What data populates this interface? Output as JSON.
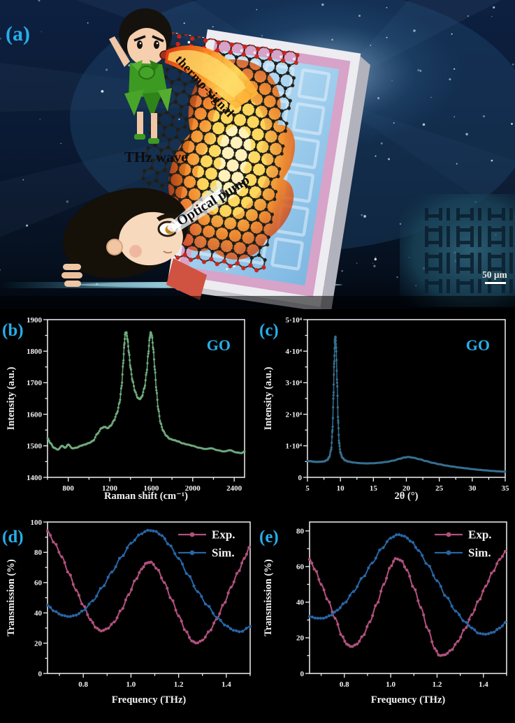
{
  "colors": {
    "background": "#000000",
    "panel_label_cyan": "#27aeea",
    "axis_white": "#f2f2f2",
    "raman_green": "#6faa7d",
    "xrd_blue": "#35708f",
    "exp_pink": "#b0517c",
    "sim_blue": "#2766a6"
  },
  "panel_a": {
    "label": "(a)",
    "thermo_signal": "thermo-signal",
    "thz_wave": "THz wave",
    "optical_pump": "Optical pump",
    "scale_bar": "50 μm"
  },
  "chart_data": [
    {
      "id": "b",
      "type": "line",
      "panel_label": "(b)",
      "annotation": "GO",
      "xlabel": "Raman shift (cm⁻¹)",
      "ylabel": "Intensity (a.u.)",
      "xlim": [
        600,
        2500
      ],
      "ylim": [
        1400,
        1900
      ],
      "xticks": [
        800,
        1200,
        1600,
        2000,
        2400
      ],
      "xtick_labels": [
        "800",
        "1200",
        "1600",
        "2000",
        "2400"
      ],
      "yticks": [
        1400,
        1500,
        1600,
        1700,
        1800,
        1900
      ],
      "ytick_labels": [
        "1400",
        "1500",
        "1600",
        "1700",
        "1800",
        "1900"
      ],
      "series": [
        {
          "name": "GO",
          "color": "#6faa7d",
          "points": [
            [
              600,
              1524
            ],
            [
              630,
              1508
            ],
            [
              660,
              1494
            ],
            [
              700,
              1488
            ],
            [
              740,
              1500
            ],
            [
              770,
              1494
            ],
            [
              800,
              1504
            ],
            [
              840,
              1492
            ],
            [
              880,
              1494
            ],
            [
              920,
              1500
            ],
            [
              960,
              1504
            ],
            [
              1000,
              1509
            ],
            [
              1040,
              1516
            ],
            [
              1080,
              1538
            ],
            [
              1120,
              1556
            ],
            [
              1150,
              1560
            ],
            [
              1180,
              1556
            ],
            [
              1210,
              1564
            ],
            [
              1240,
              1580
            ],
            [
              1270,
              1604
            ],
            [
              1295,
              1638
            ],
            [
              1315,
              1690
            ],
            [
              1330,
              1762
            ],
            [
              1340,
              1820
            ],
            [
              1350,
              1858
            ],
            [
              1360,
              1860
            ],
            [
              1372,
              1836
            ],
            [
              1385,
              1795
            ],
            [
              1400,
              1748
            ],
            [
              1420,
              1706
            ],
            [
              1445,
              1672
            ],
            [
              1470,
              1652
            ],
            [
              1490,
              1648
            ],
            [
              1510,
              1656
            ],
            [
              1535,
              1684
            ],
            [
              1555,
              1732
            ],
            [
              1572,
              1792
            ],
            [
              1585,
              1842
            ],
            [
              1595,
              1860
            ],
            [
              1607,
              1848
            ],
            [
              1620,
              1806
            ],
            [
              1635,
              1742
            ],
            [
              1650,
              1676
            ],
            [
              1668,
              1616
            ],
            [
              1690,
              1572
            ],
            [
              1715,
              1548
            ],
            [
              1745,
              1532
            ],
            [
              1780,
              1522
            ],
            [
              1820,
              1518
            ],
            [
              1860,
              1514
            ],
            [
              1900,
              1508
            ],
            [
              1950,
              1504
            ],
            [
              2000,
              1500
            ],
            [
              2060,
              1494
            ],
            [
              2120,
              1490
            ],
            [
              2180,
              1492
            ],
            [
              2240,
              1486
            ],
            [
              2300,
              1482
            ],
            [
              2360,
              1486
            ],
            [
              2420,
              1479
            ],
            [
              2470,
              1477
            ],
            [
              2500,
              1482
            ]
          ]
        }
      ]
    },
    {
      "id": "c",
      "type": "line",
      "panel_label": "(c)",
      "annotation": "GO",
      "xlabel": "2θ (°)",
      "ylabel": "Intensity (a.u.)",
      "xlim": [
        5,
        35
      ],
      "ylim": [
        0,
        50000
      ],
      "xticks": [
        5,
        10,
        15,
        20,
        25,
        30,
        35
      ],
      "xtick_labels": [
        "5",
        "10",
        "15",
        "20",
        "25",
        "30",
        "35"
      ],
      "yticks": [
        0,
        10000,
        20000,
        30000,
        40000,
        50000
      ],
      "ytick_labels": [
        "0",
        "1·10⁴",
        "2·10⁴",
        "3·10⁴",
        "4·10⁴",
        "5·10⁴"
      ],
      "series": [
        {
          "name": "GO",
          "color": "#35708f",
          "points": [
            [
              5,
              5200
            ],
            [
              5.5,
              5100
            ],
            [
              6,
              4950
            ],
            [
              6.5,
              4900
            ],
            [
              7,
              4950
            ],
            [
              7.5,
              5050
            ],
            [
              8,
              5500
            ],
            [
              8.3,
              6400
            ],
            [
              8.6,
              8800
            ],
            [
              8.8,
              15000
            ],
            [
              8.95,
              26000
            ],
            [
              9.05,
              36000
            ],
            [
              9.15,
              43500
            ],
            [
              9.25,
              44600
            ],
            [
              9.35,
              41000
            ],
            [
              9.5,
              30000
            ],
            [
              9.65,
              18000
            ],
            [
              9.8,
              11000
            ],
            [
              10,
              7800
            ],
            [
              10.3,
              6200
            ],
            [
              10.7,
              5400
            ],
            [
              11.2,
              5000
            ],
            [
              12,
              4700
            ],
            [
              13,
              4500
            ],
            [
              14,
              4420
            ],
            [
              15,
              4480
            ],
            [
              16,
              4650
            ],
            [
              17,
              4900
            ],
            [
              18,
              5300
            ],
            [
              19,
              5900
            ],
            [
              19.7,
              6300
            ],
            [
              20.3,
              6450
            ],
            [
              21,
              6250
            ],
            [
              22,
              5750
            ],
            [
              23,
              5150
            ],
            [
              24,
              4600
            ],
            [
              25,
              4150
            ],
            [
              26,
              3750
            ],
            [
              27,
              3420
            ],
            [
              28,
              3120
            ],
            [
              29,
              2870
            ],
            [
              30,
              2620
            ],
            [
              31,
              2400
            ],
            [
              32,
              2210
            ],
            [
              33,
              2040
            ],
            [
              34,
              1900
            ],
            [
              35,
              1800
            ]
          ]
        }
      ]
    },
    {
      "id": "d",
      "type": "line",
      "panel_label": "(d)",
      "annotation": "",
      "xlabel": "Frequency (THz)",
      "ylabel": "Transmission (%)",
      "xlim": [
        0.65,
        1.5
      ],
      "ylim": [
        0,
        100
      ],
      "xticks": [
        0.8,
        1.0,
        1.2,
        1.4
      ],
      "xtick_labels": [
        "0.8",
        "1.0",
        "1.2",
        "1.4"
      ],
      "yticks": [
        0,
        20,
        40,
        60,
        80,
        100
      ],
      "ytick_labels": [
        "0",
        "20",
        "40",
        "60",
        "80",
        "100"
      ],
      "legend": true,
      "series": [
        {
          "name": "Exp.",
          "color": "#b0517c",
          "points": [
            [
              0.65,
              94
            ],
            [
              0.68,
              86
            ],
            [
              0.71,
              77
            ],
            [
              0.74,
              66
            ],
            [
              0.77,
              55
            ],
            [
              0.8,
              45
            ],
            [
              0.83,
              35.5
            ],
            [
              0.855,
              30
            ],
            [
              0.875,
              28
            ],
            [
              0.9,
              29.5
            ],
            [
              0.93,
              34
            ],
            [
              0.96,
              42
            ],
            [
              0.99,
              52
            ],
            [
              1.02,
              62
            ],
            [
              1.045,
              69
            ],
            [
              1.065,
              73
            ],
            [
              1.085,
              73.5
            ],
            [
              1.11,
              69
            ],
            [
              1.14,
              60
            ],
            [
              1.17,
              49
            ],
            [
              1.2,
              38
            ],
            [
              1.23,
              28
            ],
            [
              1.255,
              21.5
            ],
            [
              1.275,
              20
            ],
            [
              1.3,
              22
            ],
            [
              1.33,
              28
            ],
            [
              1.36,
              36
            ],
            [
              1.39,
              46
            ],
            [
              1.42,
              57
            ],
            [
              1.45,
              67
            ],
            [
              1.475,
              76
            ],
            [
              1.5,
              84
            ]
          ]
        },
        {
          "name": "Sim.",
          "color": "#2766a6",
          "points": [
            [
              0.65,
              45
            ],
            [
              0.68,
              41
            ],
            [
              0.71,
              38.5
            ],
            [
              0.74,
              37.5
            ],
            [
              0.77,
              38.5
            ],
            [
              0.8,
              41.5
            ],
            [
              0.84,
              48
            ],
            [
              0.88,
              57
            ],
            [
              0.92,
              67
            ],
            [
              0.96,
              77
            ],
            [
              1.0,
              86
            ],
            [
              1.04,
              92
            ],
            [
              1.07,
              94.5
            ],
            [
              1.1,
              94
            ],
            [
              1.13,
              91
            ],
            [
              1.16,
              85
            ],
            [
              1.2,
              76
            ],
            [
              1.24,
              65
            ],
            [
              1.28,
              54
            ],
            [
              1.32,
              45
            ],
            [
              1.36,
              37
            ],
            [
              1.4,
              31.5
            ],
            [
              1.43,
              28.5
            ],
            [
              1.46,
              27.5
            ],
            [
              1.5,
              31
            ]
          ]
        }
      ]
    },
    {
      "id": "e",
      "type": "line",
      "panel_label": "(e)",
      "annotation": "",
      "xlabel": "Frequency (THz)",
      "ylabel": "Transmission (%)",
      "xlim": [
        0.65,
        1.5
      ],
      "ylim": [
        0,
        85
      ],
      "xticks": [
        0.8,
        1.0,
        1.2,
        1.4
      ],
      "xtick_labels": [
        "0.8",
        "1.0",
        "1.2",
        "1.4"
      ],
      "yticks": [
        0,
        20,
        40,
        60,
        80
      ],
      "ytick_labels": [
        "0",
        "20",
        "40",
        "60",
        "80"
      ],
      "legend": true,
      "series": [
        {
          "name": "Exp.",
          "color": "#b0517c",
          "points": [
            [
              0.65,
              64
            ],
            [
              0.675,
              58
            ],
            [
              0.7,
              50
            ],
            [
              0.73,
              41
            ],
            [
              0.76,
              31
            ],
            [
              0.79,
              21
            ],
            [
              0.81,
              16.5
            ],
            [
              0.83,
              15
            ],
            [
              0.855,
              16.5
            ],
            [
              0.88,
              21
            ],
            [
              0.91,
              29
            ],
            [
              0.94,
              39
            ],
            [
              0.97,
              50
            ],
            [
              1.0,
              60
            ],
            [
              1.02,
              64.5
            ],
            [
              1.045,
              63.5
            ],
            [
              1.07,
              58
            ],
            [
              1.1,
              48
            ],
            [
              1.13,
              37
            ],
            [
              1.16,
              25
            ],
            [
              1.19,
              14
            ],
            [
              1.21,
              10
            ],
            [
              1.235,
              10.5
            ],
            [
              1.26,
              13
            ],
            [
              1.29,
              18
            ],
            [
              1.32,
              25
            ],
            [
              1.35,
              33
            ],
            [
              1.38,
              41
            ],
            [
              1.41,
              49
            ],
            [
              1.44,
              57
            ],
            [
              1.47,
              64
            ],
            [
              1.5,
              69
            ]
          ]
        },
        {
          "name": "Sim.",
          "color": "#2766a6",
          "points": [
            [
              0.65,
              32
            ],
            [
              0.68,
              31
            ],
            [
              0.71,
              31
            ],
            [
              0.74,
              32.5
            ],
            [
              0.77,
              35.5
            ],
            [
              0.8,
              39.5
            ],
            [
              0.84,
              46
            ],
            [
              0.88,
              54
            ],
            [
              0.92,
              62
            ],
            [
              0.96,
              70
            ],
            [
              1.0,
              76
            ],
            [
              1.03,
              78
            ],
            [
              1.06,
              77
            ],
            [
              1.09,
              74
            ],
            [
              1.12,
              69
            ],
            [
              1.16,
              61
            ],
            [
              1.2,
              52
            ],
            [
              1.24,
              43
            ],
            [
              1.28,
              35
            ],
            [
              1.32,
              29
            ],
            [
              1.35,
              25.5
            ],
            [
              1.38,
              22.5
            ],
            [
              1.41,
              22
            ],
            [
              1.44,
              23
            ],
            [
              1.47,
              25.5
            ],
            [
              1.5,
              29
            ]
          ]
        }
      ]
    }
  ]
}
